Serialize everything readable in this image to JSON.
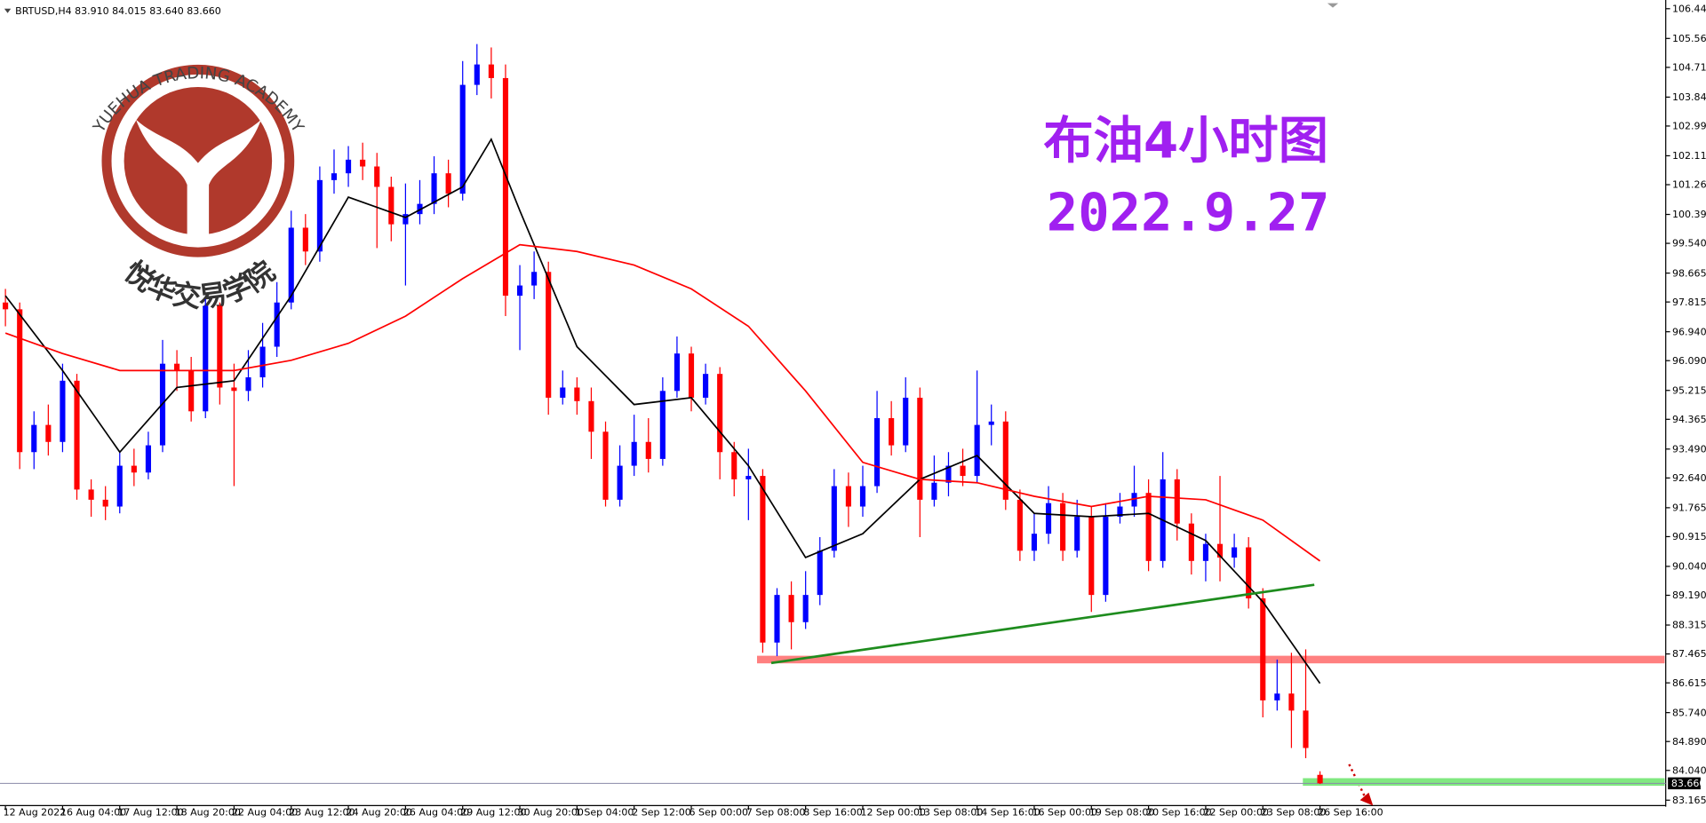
{
  "chart_data": {
    "type": "candlestick",
    "header": "BRTUSD,H4  83.910 84.015 83.640 83.660",
    "title": "布油4小时图",
    "subtitle": "2022.9.27",
    "title_color": "#a020f0",
    "watermark": {
      "en": "YUEHUA TRADING ACADEMY",
      "cn": "悦华交易学院",
      "color": "#b0392c"
    },
    "colors": {
      "up": "#0000ff",
      "down": "#ff0000"
    },
    "open": [
      97.8,
      97.6,
      93.4,
      94.2,
      93.7,
      95.5,
      92.3,
      92.0,
      91.8,
      93.0,
      92.8,
      93.6,
      96.0,
      95.8,
      94.6,
      97.7,
      95.3,
      95.2,
      95.6,
      96.5,
      97.8,
      100.0,
      99.3,
      101.4,
      101.6,
      102.0,
      101.8,
      101.2,
      100.1,
      100.4,
      100.7,
      101.6,
      101.0,
      104.2,
      104.8,
      104.4,
      98.0,
      98.3,
      98.7,
      95.0,
      95.3,
      94.9,
      94.0,
      92.0,
      93.0,
      93.7,
      93.2,
      95.2,
      96.3,
      95.0,
      95.7,
      93.4,
      92.6,
      92.7,
      87.8,
      89.2,
      88.4,
      89.2,
      90.5,
      92.4,
      91.8,
      92.4,
      94.4,
      93.6,
      95.0,
      92.0,
      92.5,
      93.0,
      92.7,
      94.2,
      94.3,
      92.0,
      90.5,
      91.0,
      91.9,
      90.5,
      91.5,
      89.2,
      91.5,
      91.8,
      92.2,
      90.2,
      92.6,
      91.3,
      90.2,
      90.7,
      90.3,
      90.6,
      89.1,
      86.1,
      86.3,
      85.8,
      83.91
    ],
    "high": [
      98.2,
      97.8,
      94.6,
      94.8,
      96.0,
      95.7,
      92.6,
      92.4,
      93.4,
      93.5,
      94.0,
      96.7,
      96.4,
      96.2,
      97.9,
      97.8,
      96.0,
      96.4,
      97.2,
      98.4,
      100.5,
      100.4,
      101.8,
      102.3,
      102.4,
      102.5,
      102.2,
      101.5,
      101.3,
      101.4,
      102.1,
      102.0,
      104.9,
      105.4,
      105.3,
      104.8,
      98.9,
      99.3,
      99.0,
      95.8,
      95.6,
      95.3,
      94.3,
      93.6,
      94.5,
      94.4,
      95.6,
      96.8,
      96.5,
      96.0,
      95.9,
      93.7,
      93.5,
      92.9,
      89.4,
      89.6,
      89.9,
      90.9,
      92.9,
      92.8,
      93.0,
      95.2,
      94.9,
      95.6,
      95.3,
      93.3,
      93.4,
      93.5,
      95.8,
      94.8,
      94.6,
      92.3,
      91.6,
      92.4,
      92.2,
      92.0,
      91.8,
      91.9,
      92.2,
      93.0,
      92.6,
      93.4,
      92.9,
      91.6,
      91.0,
      92.7,
      91.0,
      90.9,
      89.4,
      87.3,
      87.5,
      87.6,
      84.015
    ],
    "low": [
      97.1,
      92.9,
      92.9,
      93.3,
      93.4,
      92.0,
      91.5,
      91.4,
      91.6,
      92.4,
      92.6,
      93.4,
      95.2,
      94.3,
      94.4,
      94.8,
      92.4,
      94.9,
      95.3,
      96.2,
      97.6,
      98.9,
      99.0,
      101.0,
      101.2,
      101.4,
      99.4,
      99.6,
      98.3,
      100.1,
      100.4,
      100.6,
      100.8,
      103.9,
      103.8,
      97.4,
      96.4,
      97.9,
      94.5,
      94.8,
      94.5,
      93.2,
      91.8,
      91.8,
      92.7,
      92.8,
      93.0,
      95.0,
      94.6,
      94.8,
      92.6,
      92.1,
      91.4,
      87.5,
      87.4,
      87.6,
      88.2,
      88.9,
      90.3,
      91.2,
      91.5,
      92.2,
      93.3,
      93.4,
      90.9,
      91.8,
      92.1,
      92.4,
      92.5,
      93.6,
      91.7,
      90.2,
      90.2,
      90.7,
      90.2,
      90.3,
      88.7,
      89.0,
      91.3,
      91.5,
      89.9,
      90.0,
      90.8,
      89.8,
      89.6,
      89.6,
      90.0,
      88.8,
      85.6,
      85.8,
      84.7,
      84.4,
      83.64
    ],
    "close": [
      97.6,
      93.4,
      94.2,
      93.7,
      95.5,
      92.3,
      92.0,
      91.8,
      93.0,
      92.8,
      93.6,
      96.0,
      95.8,
      94.6,
      97.7,
      95.3,
      95.2,
      95.6,
      96.5,
      97.8,
      100.0,
      99.3,
      101.4,
      101.6,
      102.0,
      101.8,
      101.2,
      100.1,
      100.4,
      100.7,
      101.6,
      101.0,
      104.2,
      104.8,
      104.4,
      98.0,
      98.3,
      98.7,
      95.0,
      95.3,
      94.9,
      94.0,
      92.0,
      93.0,
      93.7,
      93.2,
      95.2,
      96.3,
      95.0,
      95.7,
      93.4,
      92.6,
      92.7,
      87.8,
      89.2,
      88.4,
      89.2,
      90.5,
      92.4,
      91.8,
      92.4,
      94.4,
      93.6,
      95.0,
      92.0,
      92.5,
      93.0,
      92.7,
      94.2,
      94.3,
      92.0,
      90.5,
      91.0,
      91.9,
      90.5,
      91.5,
      89.2,
      91.5,
      91.8,
      92.2,
      90.2,
      92.6,
      91.3,
      90.2,
      90.7,
      90.3,
      90.6,
      89.1,
      86.1,
      86.3,
      85.8,
      84.7,
      83.66
    ],
    "lines": [
      {
        "color": "#000000",
        "x": [
          0,
          4,
          8,
          12,
          16,
          20,
          24,
          28,
          32,
          34,
          36,
          40,
          44,
          48,
          52,
          56,
          60,
          64,
          68,
          72,
          76,
          80,
          84,
          88,
          92
        ],
        "values": [
          98.0,
          95.8,
          93.4,
          95.3,
          95.5,
          98.0,
          100.9,
          100.3,
          101.2,
          102.6,
          100.5,
          96.5,
          94.8,
          95.0,
          93.0,
          90.3,
          91.0,
          92.6,
          93.3,
          91.6,
          91.5,
          91.6,
          90.8,
          89.0,
          86.6
        ]
      },
      {
        "color": "#ff0000",
        "x": [
          0,
          4,
          8,
          12,
          16,
          20,
          24,
          28,
          32,
          36,
          40,
          44,
          48,
          52,
          56,
          60,
          64,
          68,
          72,
          76,
          80,
          84,
          88,
          92
        ],
        "values": [
          96.9,
          96.3,
          95.8,
          95.8,
          95.8,
          96.1,
          96.6,
          97.4,
          98.5,
          99.5,
          99.3,
          98.9,
          98.2,
          97.1,
          95.2,
          93.1,
          92.6,
          92.5,
          92.1,
          91.8,
          92.1,
          92.0,
          91.4,
          90.2
        ]
      },
      {
        "color": "#1e8c1e",
        "x": [
          53.6,
          91.6
        ],
        "values": [
          87.2,
          89.5
        ]
      }
    ],
    "levels": [
      {
        "value": 87.3,
        "from": 52.6,
        "color": "#ff8080"
      },
      {
        "value": 83.7,
        "from": 90.8,
        "color": "#80e880"
      }
    ],
    "last": {
      "value": 83.66,
      "label": "83.660"
    },
    "xlim": [
      -0.38,
      116.12
    ],
    "ylim": [
      83.165,
      106.44
    ],
    "xticks": [
      {
        "value": 0,
        "label": "12 Aug 2022"
      },
      {
        "value": 4,
        "label": "16 Aug 04:00"
      },
      {
        "value": 8,
        "label": "17 Aug 12:00"
      },
      {
        "value": 12,
        "label": "18 Aug 20:00"
      },
      {
        "value": 16,
        "label": "22 Aug 04:00"
      },
      {
        "value": 20,
        "label": "23 Aug 12:00"
      },
      {
        "value": 24,
        "label": "24 Aug 20:00"
      },
      {
        "value": 28,
        "label": "26 Aug 04:00"
      },
      {
        "value": 32,
        "label": "29 Aug 12:00"
      },
      {
        "value": 36,
        "label": "30 Aug 20:00"
      },
      {
        "value": 40,
        "label": "1 Sep 04:00"
      },
      {
        "value": 44,
        "label": "2 Sep 12:00"
      },
      {
        "value": 48,
        "label": "6 Sep 00:00"
      },
      {
        "value": 52,
        "label": "7 Sep 08:00"
      },
      {
        "value": 56,
        "label": "8 Sep 16:00"
      },
      {
        "value": 60,
        "label": "12 Sep 00:00"
      },
      {
        "value": 64,
        "label": "13 Sep 08:00"
      },
      {
        "value": 68,
        "label": "14 Sep 16:00"
      },
      {
        "value": 72,
        "label": "16 Sep 00:00"
      },
      {
        "value": 76,
        "label": "19 Sep 08:00"
      },
      {
        "value": 80,
        "label": "20 Sep 16:00"
      },
      {
        "value": 84,
        "label": "22 Sep 00:00"
      },
      {
        "value": 88,
        "label": "23 Sep 08:00"
      },
      {
        "value": 92,
        "label": "26 Sep 16:00"
      }
    ],
    "yticks": [
      {
        "value": 106.44,
        "label": "106.440"
      },
      105.565,
      104.715,
      {
        "value": 103.84,
        "label": "103.840"
      },
      {
        "value": 102.99,
        "label": "102.990"
      },
      102.115,
      101.265,
      {
        "value": 100.39,
        "label": "100.390"
      },
      {
        "value": 99.54,
        "label": "99.540"
      },
      98.665,
      97.815,
      {
        "value": 96.94,
        "label": "96.940"
      },
      {
        "value": 96.09,
        "label": "96.090"
      },
      95.215,
      94.365,
      {
        "value": 93.49,
        "label": "93.490"
      },
      {
        "value": 92.64,
        "label": "92.640"
      },
      91.765,
      90.915,
      {
        "value": 90.04,
        "label": "90.040"
      },
      {
        "value": 89.19,
        "label": "89.190"
      },
      88.315,
      87.465,
      86.615,
      {
        "value": 85.74,
        "label": "85.740"
      },
      {
        "value": 84.89,
        "label": "84.890"
      },
      {
        "value": 84.04,
        "label": "84.040"
      },
      83.165
    ]
  }
}
